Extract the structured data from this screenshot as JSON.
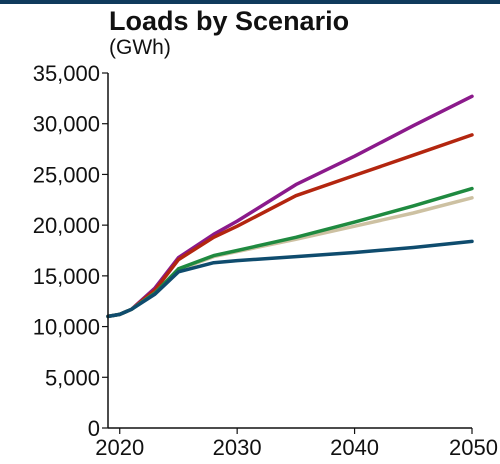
{
  "chart_data": {
    "type": "line",
    "title": "Loads by Scenario",
    "subtitle": "(GWh)",
    "xlabel": "",
    "ylabel": "",
    "xlim": [
      2019,
      2050
    ],
    "ylim": [
      0,
      35000
    ],
    "x_ticks": [
      2020,
      2030,
      2040,
      2050
    ],
    "y_ticks": [
      0,
      5000,
      10000,
      15000,
      20000,
      25000,
      30000,
      35000
    ],
    "x_tick_labels": [
      "2020",
      "2030",
      "2040",
      "2050"
    ],
    "y_tick_labels": [
      "0",
      "5,000",
      "10,000",
      "15,000",
      "20,000",
      "25,000",
      "30,000",
      "35,000"
    ],
    "grid": false,
    "legend": "none",
    "series": [
      {
        "color": "#8b1a8b",
        "points": [
          [
            2019,
            11000
          ],
          [
            2020,
            11200
          ],
          [
            2021,
            11700
          ],
          [
            2023,
            13800
          ],
          [
            2025,
            16800
          ],
          [
            2028,
            19100
          ],
          [
            2030,
            20400
          ],
          [
            2035,
            24000
          ],
          [
            2040,
            26800
          ],
          [
            2045,
            29800
          ],
          [
            2050,
            32700
          ]
        ]
      },
      {
        "color": "#b3260f",
        "points": [
          [
            2019,
            11000
          ],
          [
            2020,
            11200
          ],
          [
            2021,
            11700
          ],
          [
            2023,
            13600
          ],
          [
            2025,
            16600
          ],
          [
            2028,
            18800
          ],
          [
            2030,
            19900
          ],
          [
            2035,
            22900
          ],
          [
            2040,
            24900
          ],
          [
            2045,
            26900
          ],
          [
            2050,
            28900
          ]
        ]
      },
      {
        "color": "#cdc1a2",
        "points": [
          [
            2019,
            11000
          ],
          [
            2020,
            11200
          ],
          [
            2021,
            11700
          ],
          [
            2023,
            13300
          ],
          [
            2025,
            15600
          ],
          [
            2028,
            16900
          ],
          [
            2030,
            17400
          ],
          [
            2035,
            18600
          ],
          [
            2040,
            19900
          ],
          [
            2045,
            21200
          ],
          [
            2050,
            22700
          ]
        ]
      },
      {
        "color": "#1f8a40",
        "points": [
          [
            2019,
            11000
          ],
          [
            2020,
            11200
          ],
          [
            2021,
            11700
          ],
          [
            2023,
            13300
          ],
          [
            2025,
            15700
          ],
          [
            2028,
            17000
          ],
          [
            2030,
            17500
          ],
          [
            2035,
            18800
          ],
          [
            2040,
            20300
          ],
          [
            2045,
            21900
          ],
          [
            2050,
            23600
          ]
        ]
      },
      {
        "color": "#0f4c6e",
        "points": [
          [
            2019,
            11000
          ],
          [
            2020,
            11200
          ],
          [
            2021,
            11700
          ],
          [
            2023,
            13200
          ],
          [
            2025,
            15400
          ],
          [
            2028,
            16300
          ],
          [
            2030,
            16500
          ],
          [
            2035,
            16900
          ],
          [
            2040,
            17300
          ],
          [
            2045,
            17800
          ],
          [
            2050,
            18400
          ]
        ]
      }
    ]
  }
}
